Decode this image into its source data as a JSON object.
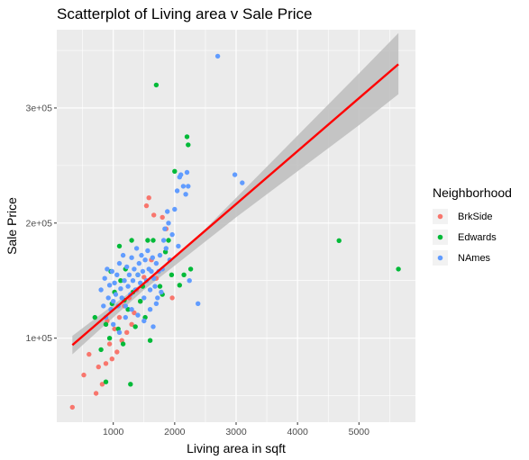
{
  "chart_data": {
    "type": "scatter",
    "title": "Scatterplot of Living area v Sale Price",
    "xlabel": "Living area in sqft",
    "ylabel": "Sale Price",
    "xlim": [
      80,
      5920
    ],
    "ylim": [
      27000,
      368000
    ],
    "x_ticks": [
      1000,
      2000,
      3000,
      4000,
      5000
    ],
    "x_tick_labels": [
      "1000",
      "2000",
      "3000",
      "4000",
      "5000"
    ],
    "y_ticks": [
      100000,
      200000,
      300000
    ],
    "y_tick_labels": [
      "1e+05",
      "2e+05",
      "3e+05"
    ],
    "grid": true,
    "legend": {
      "title": "Neighborhood",
      "placement": "right",
      "entries": [
        "BrkSide",
        "Edwards",
        "NAmes"
      ]
    },
    "series": [
      {
        "name": "BrkSide",
        "color": "#F8766D",
        "points": [
          [
            334,
            40000
          ],
          [
            520,
            68000
          ],
          [
            605,
            86000
          ],
          [
            720,
            52000
          ],
          [
            760,
            75000
          ],
          [
            820,
            60000
          ],
          [
            880,
            78000
          ],
          [
            940,
            95000
          ],
          [
            980,
            82000
          ],
          [
            1020,
            108000
          ],
          [
            1060,
            88000
          ],
          [
            1100,
            118000
          ],
          [
            1140,
            98000
          ],
          [
            1180,
            128000
          ],
          [
            1220,
            105000
          ],
          [
            1260,
            135000
          ],
          [
            1300,
            112000
          ],
          [
            1340,
            122000
          ],
          [
            1380,
            142000
          ],
          [
            1440,
            132000
          ],
          [
            1500,
            153000
          ],
          [
            1540,
            215000
          ],
          [
            1580,
            222000
          ],
          [
            1620,
            168000
          ],
          [
            1700,
            152000
          ],
          [
            1800,
            205000
          ],
          [
            1860,
            195000
          ],
          [
            1960,
            135000
          ],
          [
            1660,
            207000
          ],
          [
            900,
            115000
          ]
        ]
      },
      {
        "name": "Edwards",
        "color": "#00BA38",
        "points": [
          [
            700,
            118000
          ],
          [
            800,
            90000
          ],
          [
            880,
            62000
          ],
          [
            940,
            100000
          ],
          [
            980,
            130000
          ],
          [
            1020,
            140000
          ],
          [
            1080,
            108000
          ],
          [
            1120,
            150000
          ],
          [
            1160,
            95000
          ],
          [
            1200,
            160000
          ],
          [
            1240,
            125000
          ],
          [
            1280,
            60000
          ],
          [
            1320,
            140000
          ],
          [
            1360,
            110000
          ],
          [
            1400,
            155000
          ],
          [
            1440,
            132000
          ],
          [
            1480,
            145000
          ],
          [
            1520,
            118000
          ],
          [
            1560,
            185000
          ],
          [
            1600,
            98000
          ],
          [
            1650,
            185000
          ],
          [
            1700,
            320000
          ],
          [
            1760,
            145000
          ],
          [
            1800,
            138000
          ],
          [
            1850,
            175000
          ],
          [
            1900,
            185000
          ],
          [
            1950,
            155000
          ],
          [
            2000,
            245000
          ],
          [
            2080,
            146000
          ],
          [
            2150,
            155000
          ],
          [
            2200,
            275000
          ],
          [
            2220,
            268000
          ],
          [
            2260,
            160000
          ],
          [
            4676,
            184750
          ],
          [
            5642,
            160000
          ],
          [
            1300,
            185000
          ],
          [
            1100,
            180000
          ],
          [
            960,
            158000
          ],
          [
            880,
            112000
          ],
          [
            1180,
            133000
          ]
        ]
      },
      {
        "name": "NAmes",
        "color": "#619CFF",
        "points": [
          [
            800,
            142000
          ],
          [
            840,
            128000
          ],
          [
            860,
            152000
          ],
          [
            880,
            118000
          ],
          [
            900,
            160000
          ],
          [
            920,
            135000
          ],
          [
            940,
            146000
          ],
          [
            960,
            125000
          ],
          [
            980,
            158000
          ],
          [
            1000,
            132000
          ],
          [
            1020,
            148000
          ],
          [
            1040,
            138000
          ],
          [
            1060,
            155000
          ],
          [
            1080,
            128000
          ],
          [
            1100,
            165000
          ],
          [
            1120,
            143000
          ],
          [
            1140,
            135000
          ],
          [
            1160,
            172000
          ],
          [
            1180,
            150000
          ],
          [
            1200,
            128000
          ],
          [
            1220,
            162000
          ],
          [
            1240,
            145000
          ],
          [
            1260,
            155000
          ],
          [
            1280,
            138000
          ],
          [
            1300,
            170000
          ],
          [
            1320,
            150000
          ],
          [
            1340,
            160000
          ],
          [
            1360,
            142000
          ],
          [
            1380,
            178000
          ],
          [
            1400,
            155000
          ],
          [
            1420,
            165000
          ],
          [
            1440,
            148000
          ],
          [
            1460,
            172000
          ],
          [
            1480,
            158000
          ],
          [
            1500,
            135000
          ],
          [
            1520,
            168000
          ],
          [
            1540,
            150000
          ],
          [
            1560,
            176000
          ],
          [
            1580,
            160000
          ],
          [
            1600,
            142000
          ],
          [
            1620,
            158000
          ],
          [
            1640,
            170000
          ],
          [
            1660,
            152000
          ],
          [
            1680,
            145000
          ],
          [
            1700,
            165000
          ],
          [
            1720,
            135000
          ],
          [
            1740,
            158000
          ],
          [
            1760,
            172000
          ],
          [
            1780,
            140000
          ],
          [
            1800,
            160000
          ],
          [
            1820,
            185000
          ],
          [
            1840,
            195000
          ],
          [
            1860,
            178000
          ],
          [
            1880,
            210000
          ],
          [
            1900,
            200000
          ],
          [
            1920,
            168000
          ],
          [
            1960,
            190000
          ],
          [
            2000,
            212000
          ],
          [
            2040,
            228000
          ],
          [
            2060,
            180000
          ],
          [
            2080,
            240000
          ],
          [
            2100,
            242000
          ],
          [
            2140,
            232000
          ],
          [
            2180,
            225000
          ],
          [
            2200,
            244000
          ],
          [
            2220,
            232000
          ],
          [
            2240,
            150000
          ],
          [
            2380,
            130000
          ],
          [
            2700,
            345000
          ],
          [
            2980,
            242000
          ],
          [
            3100,
            235000
          ],
          [
            1000,
            112000
          ],
          [
            1100,
            105000
          ],
          [
            1200,
            118000
          ],
          [
            1300,
            125000
          ],
          [
            1400,
            120000
          ],
          [
            1500,
            115000
          ],
          [
            1600,
            125000
          ],
          [
            1700,
            130000
          ],
          [
            1650,
            110000
          ]
        ]
      }
    ],
    "fit": {
      "method": "lm",
      "color": "#FF0000",
      "band_color": "#BDBDBD",
      "line": [
        [
          334,
          94000
        ],
        [
          5642,
          338000
        ]
      ],
      "band_lower": [
        [
          334,
          86000
        ],
        [
          1000,
          118000
        ],
        [
          1500,
          142000
        ],
        [
          2000,
          163000
        ],
        [
          2500,
          184000
        ],
        [
          3000,
          205000
        ],
        [
          4000,
          245000
        ],
        [
          5000,
          285000
        ],
        [
          5642,
          312000
        ]
      ],
      "band_upper": [
        [
          334,
          102000
        ],
        [
          1000,
          129000
        ],
        [
          1500,
          149000
        ],
        [
          2000,
          171000
        ],
        [
          2500,
          195000
        ],
        [
          3000,
          222000
        ],
        [
          4000,
          276000
        ],
        [
          5000,
          330000
        ],
        [
          5642,
          365000
        ]
      ]
    }
  }
}
